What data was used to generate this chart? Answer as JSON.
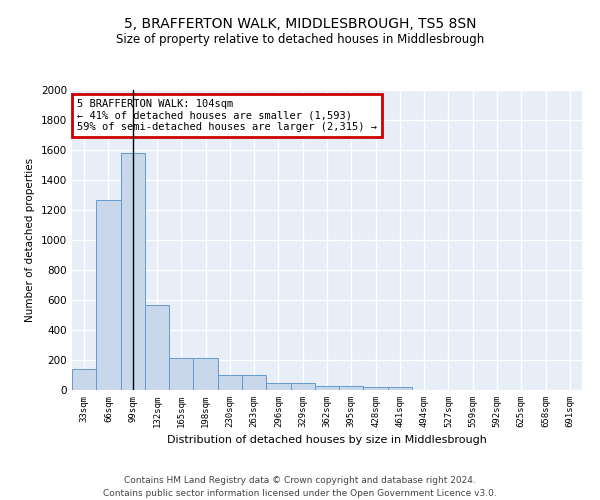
{
  "title": "5, BRAFFERTON WALK, MIDDLESBROUGH, TS5 8SN",
  "subtitle": "Size of property relative to detached houses in Middlesbrough",
  "xlabel": "Distribution of detached houses by size in Middlesbrough",
  "ylabel": "Number of detached properties",
  "bar_color": "#c8d8ea",
  "bar_edge_color": "#6699cc",
  "background_color": "#e8eef8",
  "grid_color": "#ffffff",
  "categories": [
    "33sqm",
    "66sqm",
    "99sqm",
    "132sqm",
    "165sqm",
    "198sqm",
    "230sqm",
    "263sqm",
    "296sqm",
    "329sqm",
    "362sqm",
    "395sqm",
    "428sqm",
    "461sqm",
    "494sqm",
    "527sqm",
    "559sqm",
    "592sqm",
    "625sqm",
    "658sqm",
    "691sqm"
  ],
  "values": [
    140,
    1265,
    1580,
    570,
    215,
    215,
    100,
    100,
    50,
    50,
    25,
    25,
    20,
    20,
    0,
    0,
    0,
    0,
    0,
    0,
    0
  ],
  "ylim": [
    0,
    2000
  ],
  "yticks": [
    0,
    200,
    400,
    600,
    800,
    1000,
    1200,
    1400,
    1600,
    1800,
    2000
  ],
  "property_line_x": 2,
  "annotation_text": "5 BRAFFERTON WALK: 104sqm\n← 41% of detached houses are smaller (1,593)\n59% of semi-detached houses are larger (2,315) →",
  "annotation_box_color": "#ffffff",
  "annotation_border_color": "#cc0000",
  "footnote": "Contains HM Land Registry data © Crown copyright and database right 2024.\nContains public sector information licensed under the Open Government Licence v3.0.",
  "title_fontsize": 10,
  "subtitle_fontsize": 8.5,
  "annotation_fontsize": 7.5,
  "footnote_fontsize": 6.5
}
